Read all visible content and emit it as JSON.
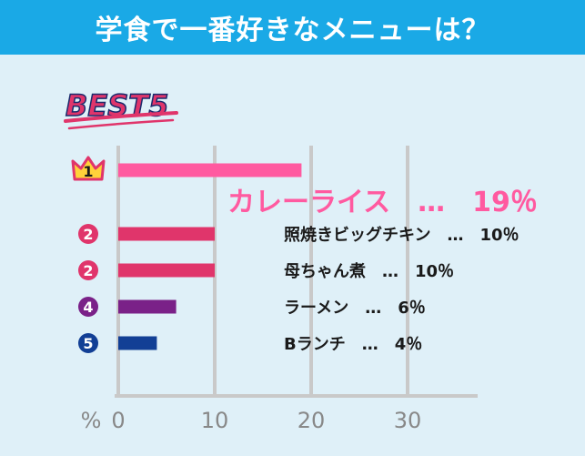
{
  "title": "学食で一番好きなメニューは？",
  "badge": "BEST5",
  "colors": {
    "header": "#1aa9e6",
    "panel": "#dff0f8",
    "grid": "#c9c9c9",
    "rank1": "#ff5aa0",
    "rank2": "#e0356b",
    "rank4": "#7a2188",
    "rank5": "#123f95",
    "axis_text": "#888888"
  },
  "chart_data": {
    "type": "bar",
    "orientation": "horizontal",
    "title": "学食で一番好きなメニューは？",
    "xunit": "%",
    "xlim": [
      0,
      35
    ],
    "xticks": [
      0,
      10,
      20,
      30
    ],
    "grid": true,
    "items": [
      {
        "rank": "1",
        "name": "カレーライス",
        "value": 19,
        "label": "カレーライス　…　19％",
        "color": "#ff5aa0"
      },
      {
        "rank": "2",
        "name": "照焼きビッグチキン",
        "value": 10,
        "label": "照焼きビッグチキン　…　10％",
        "color": "#e0356b"
      },
      {
        "rank": "2",
        "name": "母ちゃん煮",
        "value": 10,
        "label": "母ちゃん煮　…　10％",
        "color": "#e0356b"
      },
      {
        "rank": "4",
        "name": "ラーメン",
        "value": 6,
        "label": "ラーメン　…　6％",
        "color": "#7a2188"
      },
      {
        "rank": "5",
        "name": "Bランチ",
        "value": 4,
        "label": "Bランチ　…　4％",
        "color": "#123f95"
      }
    ]
  }
}
